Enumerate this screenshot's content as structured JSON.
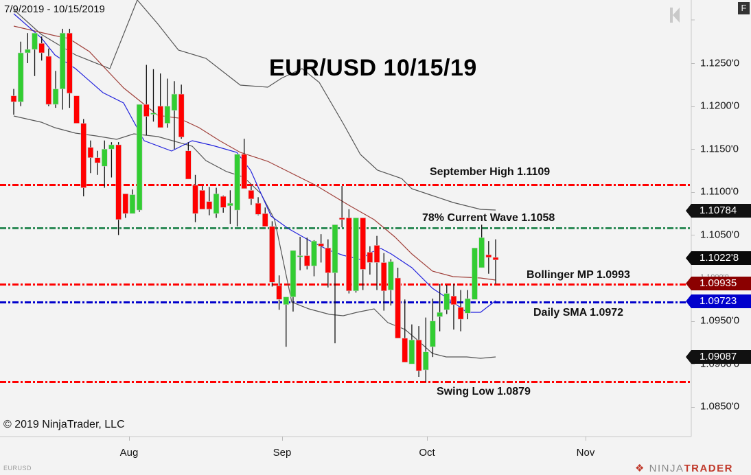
{
  "header": {
    "date_range": "7/9/2019 - 10/15/2019",
    "title": "EUR/USD 10/15/19",
    "f_button": "F"
  },
  "footer": {
    "copyright": "© 2019 NinjaTrader, LLC",
    "symbol": "EURUSD",
    "logo_left": "NINJA",
    "logo_right": "TRADER"
  },
  "annotations": {
    "sept_high": "September High 1.1109",
    "wave78": "78% Current Wave 1.1058",
    "bollinger_mp": "Bollinger MP 1.0993",
    "daily_sma": "Daily SMA 1.0972",
    "swing_low": "Swing Low 1.0879"
  },
  "axis": {
    "y_ticks": [
      "1.1250'0",
      "1.1200'0",
      "1.1150'0",
      "1.1100'0",
      "1.1050'0",
      "1.1000'0",
      "1.0950'0",
      "1.0900'0",
      "1.0850'0"
    ],
    "x_ticks": [
      "Aug",
      "Sep",
      "Oct",
      "Nov"
    ]
  },
  "price_tags": {
    "upper_band": "1.10784",
    "last_price": "1.1022'8",
    "bollinger_mp": "1.09935",
    "sma": "1.09723",
    "lower_band": "1.09087"
  },
  "colors": {
    "background": "#f3f3f3",
    "up_candle": "#32cd32",
    "down_candle": "#ff0000",
    "sma_line": "#2222dd",
    "bollinger_mid": "#a0403a",
    "bollinger_band": "#555555",
    "red_level": "#ff0000",
    "green_level": "#2e8b57",
    "blue_level": "#0000cc",
    "tag_dark": "#111111",
    "tag_red": "#8b0000",
    "tag_blue": "#0000cc"
  },
  "chart_data": {
    "type": "candlestick",
    "title": "EUR/USD 10/15/19",
    "subtitle": "7/9/2019 - 10/15/2019",
    "xlabel": "",
    "ylabel": "",
    "ylim": [
      1.0812,
      1.132
    ],
    "x_ticks": [
      "Aug",
      "Sep",
      "Oct",
      "Nov"
    ],
    "y_ticks": [
      1.125,
      1.12,
      1.115,
      1.11,
      1.105,
      1.1,
      1.095,
      1.09,
      1.085
    ],
    "grid": false,
    "horizontal_levels": [
      {
        "label": "September High",
        "value": 1.1109,
        "color": "#ff0000"
      },
      {
        "label": "78% Current Wave",
        "value": 1.1058,
        "color": "#2e8b57"
      },
      {
        "label": "Bollinger MP",
        "value": 1.0993,
        "color": "#ff0000"
      },
      {
        "label": "Daily SMA",
        "value": 1.0972,
        "color": "#0000cc"
      },
      {
        "label": "Swing Low",
        "value": 1.0879,
        "color": "#ff0000"
      }
    ],
    "candles": [
      [
        1.1212,
        1.122,
        1.119,
        1.1205
      ],
      [
        1.1205,
        1.1275,
        1.12,
        1.1262
      ],
      [
        1.1262,
        1.1285,
        1.125,
        1.1266
      ],
      [
        1.1266,
        1.128,
        1.1235,
        1.1285
      ],
      [
        1.1273,
        1.1281,
        1.1253,
        1.1262
      ],
      [
        1.1258,
        1.1267,
        1.12,
        1.1202
      ],
      [
        1.1202,
        1.1241,
        1.1198,
        1.122
      ],
      [
        1.122,
        1.129,
        1.1196,
        1.1285
      ],
      [
        1.1285,
        1.129,
        1.1198,
        1.1215
      ],
      [
        1.1212,
        1.1177,
        1.119,
        1.118
      ],
      [
        1.118,
        1.1185,
        1.1095,
        1.1105
      ],
      [
        1.1152,
        1.116,
        1.1122,
        1.114
      ],
      [
        1.114,
        1.1148,
        1.112,
        1.1134
      ],
      [
        1.113,
        1.116,
        1.1105,
        1.115
      ],
      [
        1.115,
        1.1158,
        1.1117,
        1.1155
      ],
      [
        1.1155,
        1.1158,
        1.105,
        1.1068
      ],
      [
        1.1098,
        1.1075,
        1.107,
        1.1075
      ],
      [
        1.1075,
        1.1103,
        1.1079,
        1.1097
      ],
      [
        1.1079,
        1.108,
        1.1077,
        1.1202
      ],
      [
        1.1202,
        1.1248,
        1.1166,
        1.1188
      ],
      [
        1.1192,
        1.1243,
        1.1182,
        1.1192
      ],
      [
        1.12,
        1.1238,
        1.119,
        1.1175
      ],
      [
        1.118,
        1.1232,
        1.1175,
        1.12
      ],
      [
        1.1195,
        1.1229,
        1.115,
        1.1214
      ],
      [
        1.1214,
        1.1225,
        1.1162,
        1.1164
      ],
      [
        1.1148,
        1.1158,
        1.113,
        1.1115
      ],
      [
        1.1108,
        1.112,
        1.1065,
        1.1075
      ],
      [
        1.1102,
        1.1107,
        1.108,
        1.108
      ],
      [
        1.1089,
        1.1106,
        1.1073,
        1.108
      ],
      [
        1.1075,
        1.1105,
        1.107,
        1.1098
      ],
      [
        1.1095,
        1.1096,
        1.1076,
        1.1082
      ],
      [
        1.1084,
        1.1102,
        1.1063,
        1.1087
      ],
      [
        1.1079,
        1.1125,
        1.106,
        1.1144
      ],
      [
        1.1144,
        1.1162,
        1.111,
        1.1104
      ],
      [
        1.1102,
        1.1107,
        1.1085,
        1.1092
      ],
      [
        1.1087,
        1.1094,
        1.1073,
        1.1074
      ],
      [
        1.1075,
        1.1082,
        1.106,
        1.106
      ],
      [
        1.106,
        1.1066,
        1.099,
        1.0995
      ],
      [
        1.0991,
        1.1003,
        1.0963,
        1.0975
      ],
      [
        1.0969,
        1.0974,
        1.092,
        1.0978
      ],
      [
        1.0978,
        1.0986,
        1.0961,
        1.1032
      ],
      [
        1.1026,
        1.1048,
        1.1009,
        1.1026
      ],
      [
        1.1026,
        1.1047,
        1.101,
        1.1014
      ],
      [
        1.1014,
        1.1044,
        1.1002,
        1.1043
      ],
      [
        1.104,
        1.1051,
        1.1018,
        1.1037
      ],
      [
        1.1035,
        1.1045,
        1.0989,
        1.1006
      ],
      [
        1.1006,
        1.1046,
        1.0924,
        1.1062
      ],
      [
        1.107,
        1.1107,
        1.1059,
        1.1068
      ],
      [
        1.107,
        1.108,
        1.0982,
        1.0985
      ],
      [
        1.0985,
        1.1067,
        1.0983,
        1.107
      ],
      [
        1.107,
        1.1068,
        1.0986,
        1.101
      ],
      [
        1.103,
        1.1037,
        1.1004,
        1.1018
      ],
      [
        1.1038,
        1.1049,
        1.0986,
        1.1018
      ],
      [
        1.1018,
        1.1029,
        1.0962,
        1.0985
      ],
      [
        1.0986,
        1.1022,
        1.0968,
        1.1019
      ],
      [
        1.1,
        1.1012,
        1.0956,
        1.093
      ],
      [
        1.093,
        1.0975,
        1.0923,
        1.0902
      ],
      [
        1.09,
        1.0946,
        1.0906,
        1.0928
      ],
      [
        1.0928,
        1.0944,
        1.0885,
        1.0892
      ],
      [
        1.0893,
        1.0954,
        1.0879,
        1.0914
      ],
      [
        1.092,
        1.0976,
        1.0908,
        1.095
      ],
      [
        1.0955,
        1.0993,
        1.0938,
        1.096
      ],
      [
        1.0963,
        1.0992,
        1.0958,
        1.0982
      ],
      [
        1.0979,
        1.0993,
        1.094,
        1.0969
      ],
      [
        1.0966,
        1.0986,
        1.0938,
        1.0952
      ],
      [
        1.0959,
        1.0986,
        1.0952,
        1.0976
      ],
      [
        1.0975,
        1.1035,
        1.1,
        1.1035
      ],
      [
        1.1012,
        1.1062,
        1.1012,
        1.1047
      ],
      [
        1.1027,
        1.1043,
        1.1005,
        1.1024
      ],
      [
        1.1024,
        1.1045,
        1.0993,
        1.1021
      ]
    ],
    "upper_band": [
      [
        20,
        14
      ],
      [
        60,
        50
      ],
      [
        110,
        80
      ],
      [
        160,
        100
      ],
      [
        200,
        0
      ],
      [
        230,
        35
      ],
      [
        260,
        73
      ],
      [
        300,
        85
      ],
      [
        350,
        124
      ],
      [
        390,
        127
      ],
      [
        410,
        114
      ],
      [
        440,
        100
      ],
      [
        465,
        120
      ],
      [
        500,
        180
      ],
      [
        525,
        225
      ],
      [
        550,
        248
      ],
      [
        585,
        260
      ],
      [
        600,
        275
      ],
      [
        630,
        285
      ],
      [
        660,
        295
      ],
      [
        700,
        305
      ],
      [
        722,
        306
      ]
    ],
    "bollinger_mid": [
      [
        20,
        38
      ],
      [
        50,
        45
      ],
      [
        80,
        52
      ],
      [
        100,
        56
      ],
      [
        130,
        75
      ],
      [
        180,
        128
      ],
      [
        230,
        168
      ],
      [
        260,
        172
      ],
      [
        290,
        186
      ],
      [
        320,
        205
      ],
      [
        350,
        222
      ],
      [
        390,
        235
      ],
      [
        420,
        250
      ],
      [
        460,
        270
      ],
      [
        510,
        300
      ],
      [
        545,
        320
      ],
      [
        575,
        345
      ],
      [
        600,
        370
      ],
      [
        630,
        395
      ],
      [
        660,
        403
      ],
      [
        700,
        405
      ],
      [
        722,
        408
      ]
    ],
    "sma": [
      [
        20,
        20
      ],
      [
        60,
        55
      ],
      [
        80,
        80
      ],
      [
        110,
        100
      ],
      [
        150,
        135
      ],
      [
        180,
        150
      ],
      [
        210,
        205
      ],
      [
        250,
        220
      ],
      [
        280,
        205
      ],
      [
        310,
        212
      ],
      [
        345,
        222
      ],
      [
        365,
        248
      ],
      [
        395,
        315
      ],
      [
        420,
        333
      ],
      [
        450,
        350
      ],
      [
        480,
        365
      ],
      [
        500,
        372
      ],
      [
        525,
        378
      ],
      [
        540,
        368
      ],
      [
        555,
        362
      ],
      [
        570,
        370
      ],
      [
        600,
        390
      ],
      [
        630,
        420
      ],
      [
        660,
        440
      ],
      [
        680,
        455
      ],
      [
        700,
        455
      ],
      [
        722,
        438
      ]
    ],
    "lower_band": [
      [
        20,
        169
      ],
      [
        60,
        178
      ],
      [
        80,
        186
      ],
      [
        110,
        194
      ],
      [
        140,
        198
      ],
      [
        170,
        203
      ],
      [
        195,
        195
      ],
      [
        230,
        199
      ],
      [
        280,
        213
      ],
      [
        300,
        234
      ],
      [
        330,
        250
      ],
      [
        355,
        258
      ],
      [
        380,
        282
      ],
      [
        400,
        320
      ],
      [
        425,
        440
      ],
      [
        450,
        450
      ],
      [
        480,
        458
      ],
      [
        500,
        460
      ],
      [
        520,
        455
      ],
      [
        545,
        450
      ],
      [
        565,
        470
      ],
      [
        590,
        480
      ],
      [
        610,
        497
      ],
      [
        630,
        515
      ],
      [
        650,
        520
      ],
      [
        680,
        520
      ],
      [
        700,
        522
      ],
      [
        722,
        520
      ]
    ]
  }
}
